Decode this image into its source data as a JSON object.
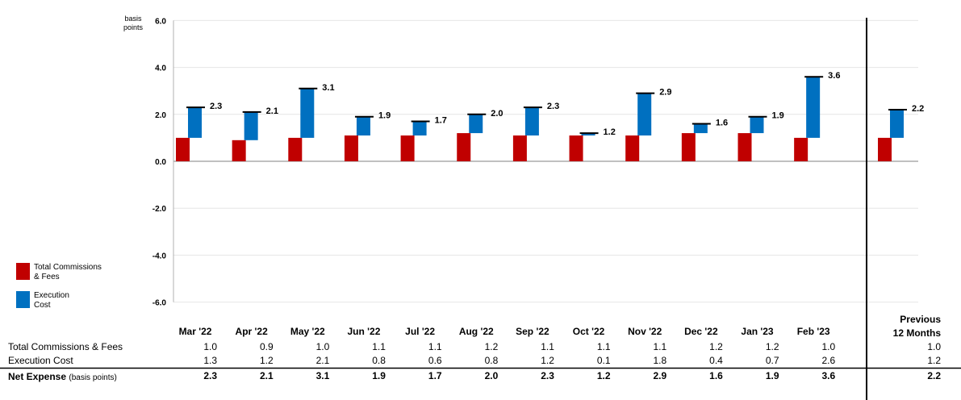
{
  "chart_data": {
    "type": "bar",
    "subtype": "stacked-waterfall",
    "ylabel": "basis points",
    "ylim": [
      -6.0,
      6.0
    ],
    "yticks": [
      "6.0",
      "4.0",
      "2.0",
      "0.0",
      "-2.0",
      "-4.0",
      "-6.0"
    ],
    "grid": true,
    "categories": [
      "Mar '22",
      "Apr '22",
      "May '22",
      "Jun '22",
      "Jul '22",
      "Aug '22",
      "Sep '22",
      "Oct '22",
      "Nov '22",
      "Dec '22",
      "Jan '23",
      "Feb '23"
    ],
    "summary_category": "Previous 12 Months",
    "summary_heading": [
      "Previous",
      "12 Months"
    ],
    "series": [
      {
        "name": "Total Commissions & Fees",
        "legend_label": [
          "Total Commissions",
          "& Fees"
        ],
        "color": "#c00000",
        "values": [
          1.0,
          0.9,
          1.0,
          1.1,
          1.1,
          1.2,
          1.1,
          1.1,
          1.1,
          1.2,
          1.2,
          1.0
        ],
        "summary": 1.0
      },
      {
        "name": "Execution Cost",
        "legend_label": [
          "Execution",
          "Cost"
        ],
        "color": "#0070c0",
        "values": [
          1.3,
          1.2,
          2.1,
          0.8,
          0.6,
          0.8,
          1.2,
          0.1,
          1.8,
          0.4,
          0.7,
          2.6
        ],
        "summary": 1.2
      }
    ],
    "net": {
      "name": "Net Expense",
      "unit_note": "(basis points)",
      "values": [
        2.3,
        2.1,
        3.1,
        1.9,
        1.7,
        2.0,
        2.3,
        1.2,
        2.9,
        1.6,
        1.9,
        3.6
      ],
      "summary": 2.2
    },
    "table_text": {
      "commissions": [
        "1.0",
        "0.9",
        "1.0",
        "1.1",
        "1.1",
        "1.2",
        "1.1",
        "1.1",
        "1.1",
        "1.2",
        "1.2",
        "1.0",
        "1.0"
      ],
      "execution": [
        "1.3",
        "1.2",
        "2.1",
        "0.8",
        "0.6",
        "0.8",
        "1.2",
        "0.1",
        "1.8",
        "0.4",
        "0.7",
        "2.6",
        "1.2"
      ],
      "net": [
        "2.3",
        "2.1",
        "3.1",
        "1.9",
        "1.7",
        "2.0",
        "2.3",
        "1.2",
        "2.9",
        "1.6",
        "1.9",
        "3.6",
        "2.2"
      ]
    }
  },
  "labels": {
    "ylabel_line1": "basis",
    "ylabel_line2": "points",
    "row_commissions": "Total Commissions & Fees",
    "row_execution": "Execution Cost",
    "row_net": "Net Expense",
    "row_net_sub": "(basis points)",
    "legend_commissions_1": "Total Commissions",
    "legend_commissions_2": "& Fees",
    "legend_execution_1": "Execution",
    "legend_execution_2": "Cost",
    "prev_1": "Previous",
    "prev_2": "12 Months"
  },
  "colors": {
    "commissions": "#c00000",
    "execution": "#0070c0",
    "grid": "#e6e6e6",
    "axis": "#808080"
  }
}
